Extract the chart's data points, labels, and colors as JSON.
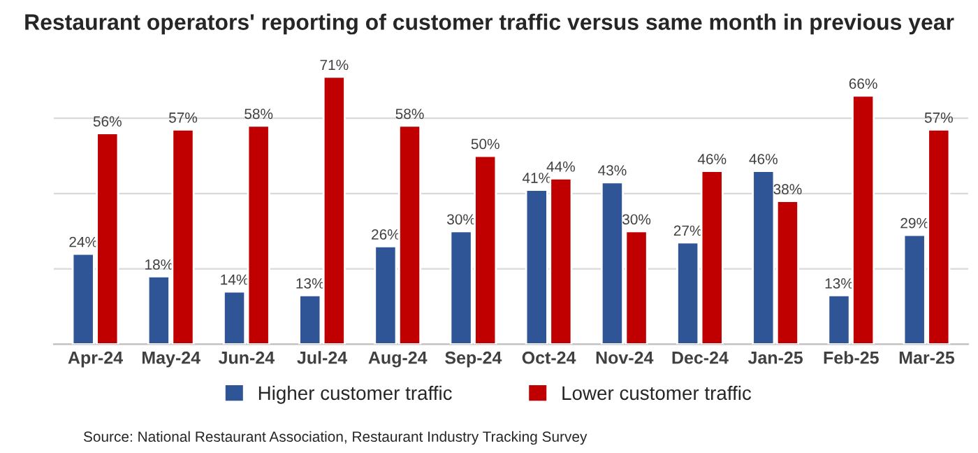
{
  "chart_data": {
    "type": "bar",
    "title": "Restaurant operators' reporting of customer traffic versus same month in previous year",
    "categories": [
      "Apr-24",
      "May-24",
      "Jun-24",
      "Jul-24",
      "Aug-24",
      "Sep-24",
      "Oct-24",
      "Nov-24",
      "Dec-24",
      "Jan-25",
      "Feb-25",
      "Mar-25"
    ],
    "series": [
      {
        "name": "Higher customer traffic",
        "color": "#2f5597",
        "values": [
          24,
          18,
          14,
          13,
          26,
          30,
          41,
          43,
          27,
          46,
          13,
          29
        ],
        "value_labels": [
          "24%",
          "18%",
          "14%",
          "13%",
          "26%",
          "30%",
          "41%",
          "43%",
          "27%",
          "46%",
          "13%",
          "29%"
        ]
      },
      {
        "name": "Lower customer traffic",
        "color": "#c00000",
        "values": [
          56,
          57,
          58,
          71,
          58,
          50,
          44,
          30,
          46,
          38,
          66,
          57
        ],
        "value_labels": [
          "56%",
          "57%",
          "58%",
          "71%",
          "58%",
          "50%",
          "44%",
          "30%",
          "46%",
          "38%",
          "66%",
          "57%"
        ]
      }
    ],
    "grid": "y",
    "legend": "bottom",
    "tick_labels": "x",
    "annotations": [
      "Source: National Restaurant Association, Restaurant Industry Tracking Survey"
    ]
  }
}
